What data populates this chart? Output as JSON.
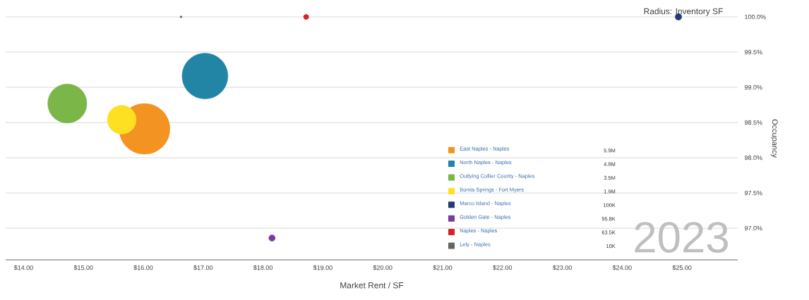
{
  "chart_data": {
    "type": "bubble",
    "xlabel": "Market Rent / SF",
    "ylabel": "Occupancy",
    "xlim": [
      13.7,
      25.93
    ],
    "ylim": [
      96.55,
      100.0
    ],
    "xticks": [
      {
        "value": 14,
        "label": "$14.00"
      },
      {
        "value": 15,
        "label": "$15.00"
      },
      {
        "value": 16,
        "label": "$16.00"
      },
      {
        "value": 17,
        "label": "$17.00"
      },
      {
        "value": 18,
        "label": "$18.00"
      },
      {
        "value": 19,
        "label": "$19.00"
      },
      {
        "value": 20,
        "label": "$20.00"
      },
      {
        "value": 21,
        "label": "$21.00"
      },
      {
        "value": 22,
        "label": "$22.00"
      },
      {
        "value": 23,
        "label": "$23.00"
      },
      {
        "value": 24,
        "label": "$24.00"
      },
      {
        "value": 25,
        "label": "$25.00"
      }
    ],
    "yticks": [
      {
        "value": 97,
        "label": "97.0%"
      },
      {
        "value": 97.5,
        "label": "97.5%"
      },
      {
        "value": 98,
        "label": "98.0%"
      },
      {
        "value": 98.5,
        "label": "98.5%"
      },
      {
        "value": 99,
        "label": "99.0%"
      },
      {
        "value": 99.5,
        "label": "99.5%"
      },
      {
        "value": 100,
        "label": "100.0%"
      }
    ],
    "grid": "y",
    "legend": "bottom right",
    "series": [
      {
        "name": "East Naples - Naples",
        "color": "#f39322",
        "x": [
          16.02
        ],
        "values": [
          98.41
        ],
        "sizes": [
          1
        ]
      },
      {
        "name": "North Naples - Naples",
        "color": "#2385a6",
        "x": [
          17.03
        ],
        "values": [
          99.16
        ],
        "sizes": [
          0.814
        ]
      },
      {
        "name": "Outlying Collier County - Naples",
        "color": "#7ab648",
        "x": [
          14.73
        ],
        "values": [
          98.77
        ],
        "sizes": [
          0.593
        ]
      },
      {
        "name": "Bonita Springs - Fort Myers",
        "color": "#fde021",
        "x": [
          15.64
        ],
        "values": [
          98.54
        ],
        "sizes": [
          0.322
        ]
      },
      {
        "name": "Marco Island - Naples",
        "color": "#1f3c73",
        "x": [
          24.94
        ],
        "values": [
          100.0
        ],
        "sizes": [
          0.0169
        ]
      },
      {
        "name": "Golden Gate - Naples",
        "color": "#7a3d9c",
        "x": [
          18.15
        ],
        "values": [
          96.86
        ],
        "sizes": [
          0.0162
        ]
      },
      {
        "name": "Naples - Naples",
        "color": "#d6232b",
        "x": [
          18.72
        ],
        "values": [
          100.0
        ],
        "sizes": [
          0.0108
        ]
      },
      {
        "name": "Lely - Naples",
        "color": "#636466",
        "x": [
          16.63
        ],
        "values": [
          100.0
        ],
        "sizes": [
          0.0017
        ]
      }
    ],
    "annotations": [
      "Radius: Inventory SF",
      "2023",
      "5.9M",
      "4.8M",
      "3.5M",
      "1.9M",
      "100K",
      "95.8K",
      "63.5K",
      "10K"
    ]
  }
}
